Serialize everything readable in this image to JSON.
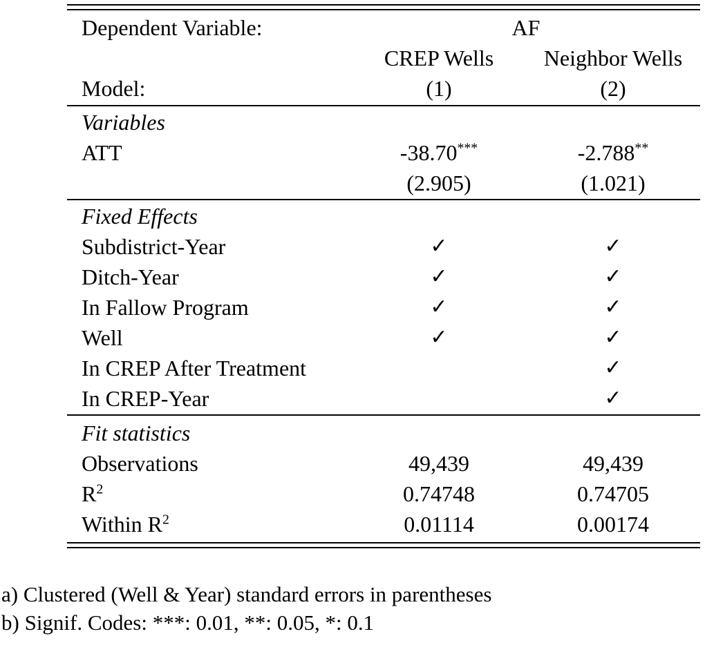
{
  "table": {
    "header": {
      "dependent_variable_label": "Dependent Variable:",
      "dependent_variable_value": "AF",
      "column_headers": [
        "CREP Wells",
        "Neighbor Wells"
      ],
      "model_label": "Model:",
      "model_numbers": [
        "(1)",
        "(2)"
      ]
    },
    "variables": {
      "section_title": "Variables",
      "att": {
        "label": "ATT",
        "cells": [
          {
            "coef": "-38.70",
            "stars": "***",
            "se": "(2.905)"
          },
          {
            "coef": "-2.788",
            "stars": "**",
            "se": "(1.021)"
          }
        ]
      }
    },
    "fixed_effects": {
      "section_title": "Fixed Effects",
      "rows": [
        {
          "label": "Subdistrict-Year",
          "cells": [
            "✓",
            "✓"
          ]
        },
        {
          "label": "Ditch-Year",
          "cells": [
            "✓",
            "✓"
          ]
        },
        {
          "label": "In Fallow Program",
          "cells": [
            "✓",
            "✓"
          ]
        },
        {
          "label": "Well",
          "cells": [
            "✓",
            "✓"
          ]
        },
        {
          "label": "In CREP After Treatment",
          "cells": [
            "",
            "✓"
          ]
        },
        {
          "label": "In CREP-Year",
          "cells": [
            "",
            "✓"
          ]
        }
      ]
    },
    "fit_statistics": {
      "section_title": "Fit statistics",
      "rows": [
        {
          "label_base": "Observations",
          "label_sup": "",
          "cells": [
            "49,439",
            "49,439"
          ]
        },
        {
          "label_base": "R",
          "label_sup": "2",
          "cells": [
            "0.74748",
            "0.74705"
          ]
        },
        {
          "label_base": "Within R",
          "label_sup": "2",
          "cells": [
            "0.01114",
            "0.00174"
          ]
        }
      ]
    }
  },
  "footnotes": {
    "a": "a) Clustered (Well & Year) standard errors in parentheses",
    "b": "b) Signif. Codes: ***: 0.01, **: 0.05, *: 0.1"
  }
}
